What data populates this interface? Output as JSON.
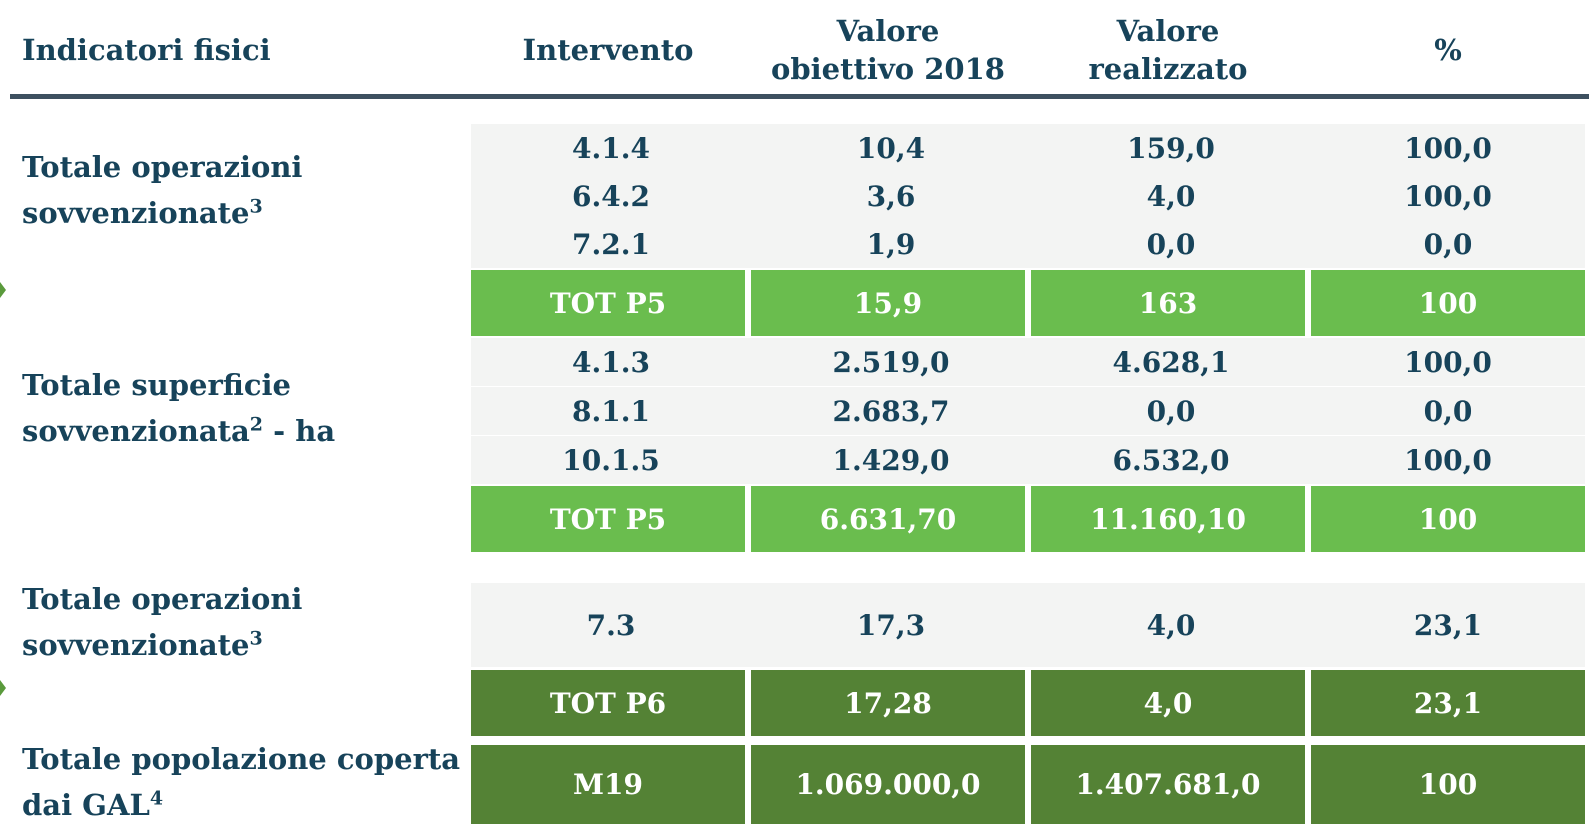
{
  "header": {
    "columns": [
      "Indicatori fisici",
      "Intervento",
      "Valore obiettivo 2018",
      "Valore realizzato",
      "%"
    ]
  },
  "groups": [
    {
      "label": "Totale operazioni sovvenzionate",
      "label_sup": "3",
      "rows": [
        [
          "4.1.4",
          "10,4",
          "159,0",
          "100,0"
        ],
        [
          "6.4.2",
          "3,6",
          "4,0",
          "100,0"
        ],
        [
          "7.2.1",
          "1,9",
          "0,0",
          "0,0"
        ]
      ],
      "total": [
        "TOT P5",
        "15,9",
        "163",
        "100"
      ]
    },
    {
      "label": "Totale superficie sovvenzionata",
      "label_sup": "2",
      "label_suffix": " - ha",
      "rows": [
        [
          "4.1.3",
          "2.519,0",
          "4.628,1",
          "100,0"
        ],
        [
          "8.1.1",
          "2.683,7",
          "0,0",
          "0,0"
        ],
        [
          "10.1.5",
          "1.429,0",
          "6.532,0",
          "100,0"
        ]
      ],
      "total": [
        "TOT P5",
        "6.631,70",
        "11.160,10",
        "100"
      ]
    },
    {
      "label": "Totale operazioni sovvenzionate",
      "label_sup": "3",
      "rows": [
        [
          "7.3",
          "17,3",
          "4,0",
          "23,1"
        ]
      ],
      "total": [
        "TOT P6",
        "17,28",
        "4,0",
        "23,1"
      ]
    },
    {
      "label": "Totale popolazione coperta dai GAL",
      "label_sup": "4",
      "rows": [],
      "total": [
        "M19",
        "1.069.000,0",
        "1.407.681,0",
        "100"
      ]
    }
  ]
}
